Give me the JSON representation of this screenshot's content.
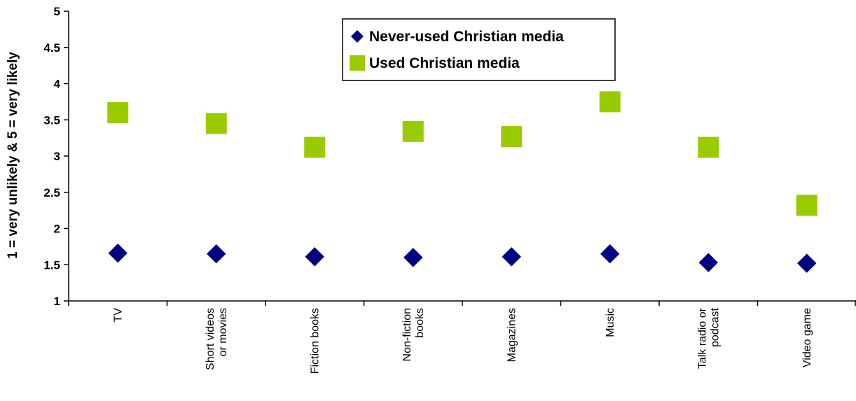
{
  "chart_data": {
    "type": "scatter",
    "categories": [
      [
        "TV"
      ],
      [
        "Short videos",
        "or movies"
      ],
      [
        "Fiction books"
      ],
      [
        "Non-fiction",
        "books"
      ],
      [
        "Magazines"
      ],
      [
        "Music"
      ],
      [
        "Talk radio or",
        "podcast"
      ],
      [
        "Video game"
      ]
    ],
    "series": [
      {
        "name": "Never-used Christian media",
        "color": "#000080",
        "marker": "diamond",
        "values": [
          1.66,
          1.65,
          1.61,
          1.6,
          1.61,
          1.65,
          1.53,
          1.52
        ]
      },
      {
        "name": "Used Christian media",
        "color": "#99CC00",
        "marker": "square",
        "values": [
          3.6,
          3.45,
          3.12,
          3.34,
          3.27,
          3.75,
          3.12,
          2.32
        ]
      }
    ],
    "ylabel": "1 = very unlikely & 5 = very likely",
    "ylim": [
      1,
      5
    ],
    "yticks": [
      "1",
      "1.5",
      "2",
      "2.5",
      "3",
      "3.5",
      "4",
      "4.5",
      "5"
    ],
    "grid": false,
    "legend_position": "top-center"
  }
}
